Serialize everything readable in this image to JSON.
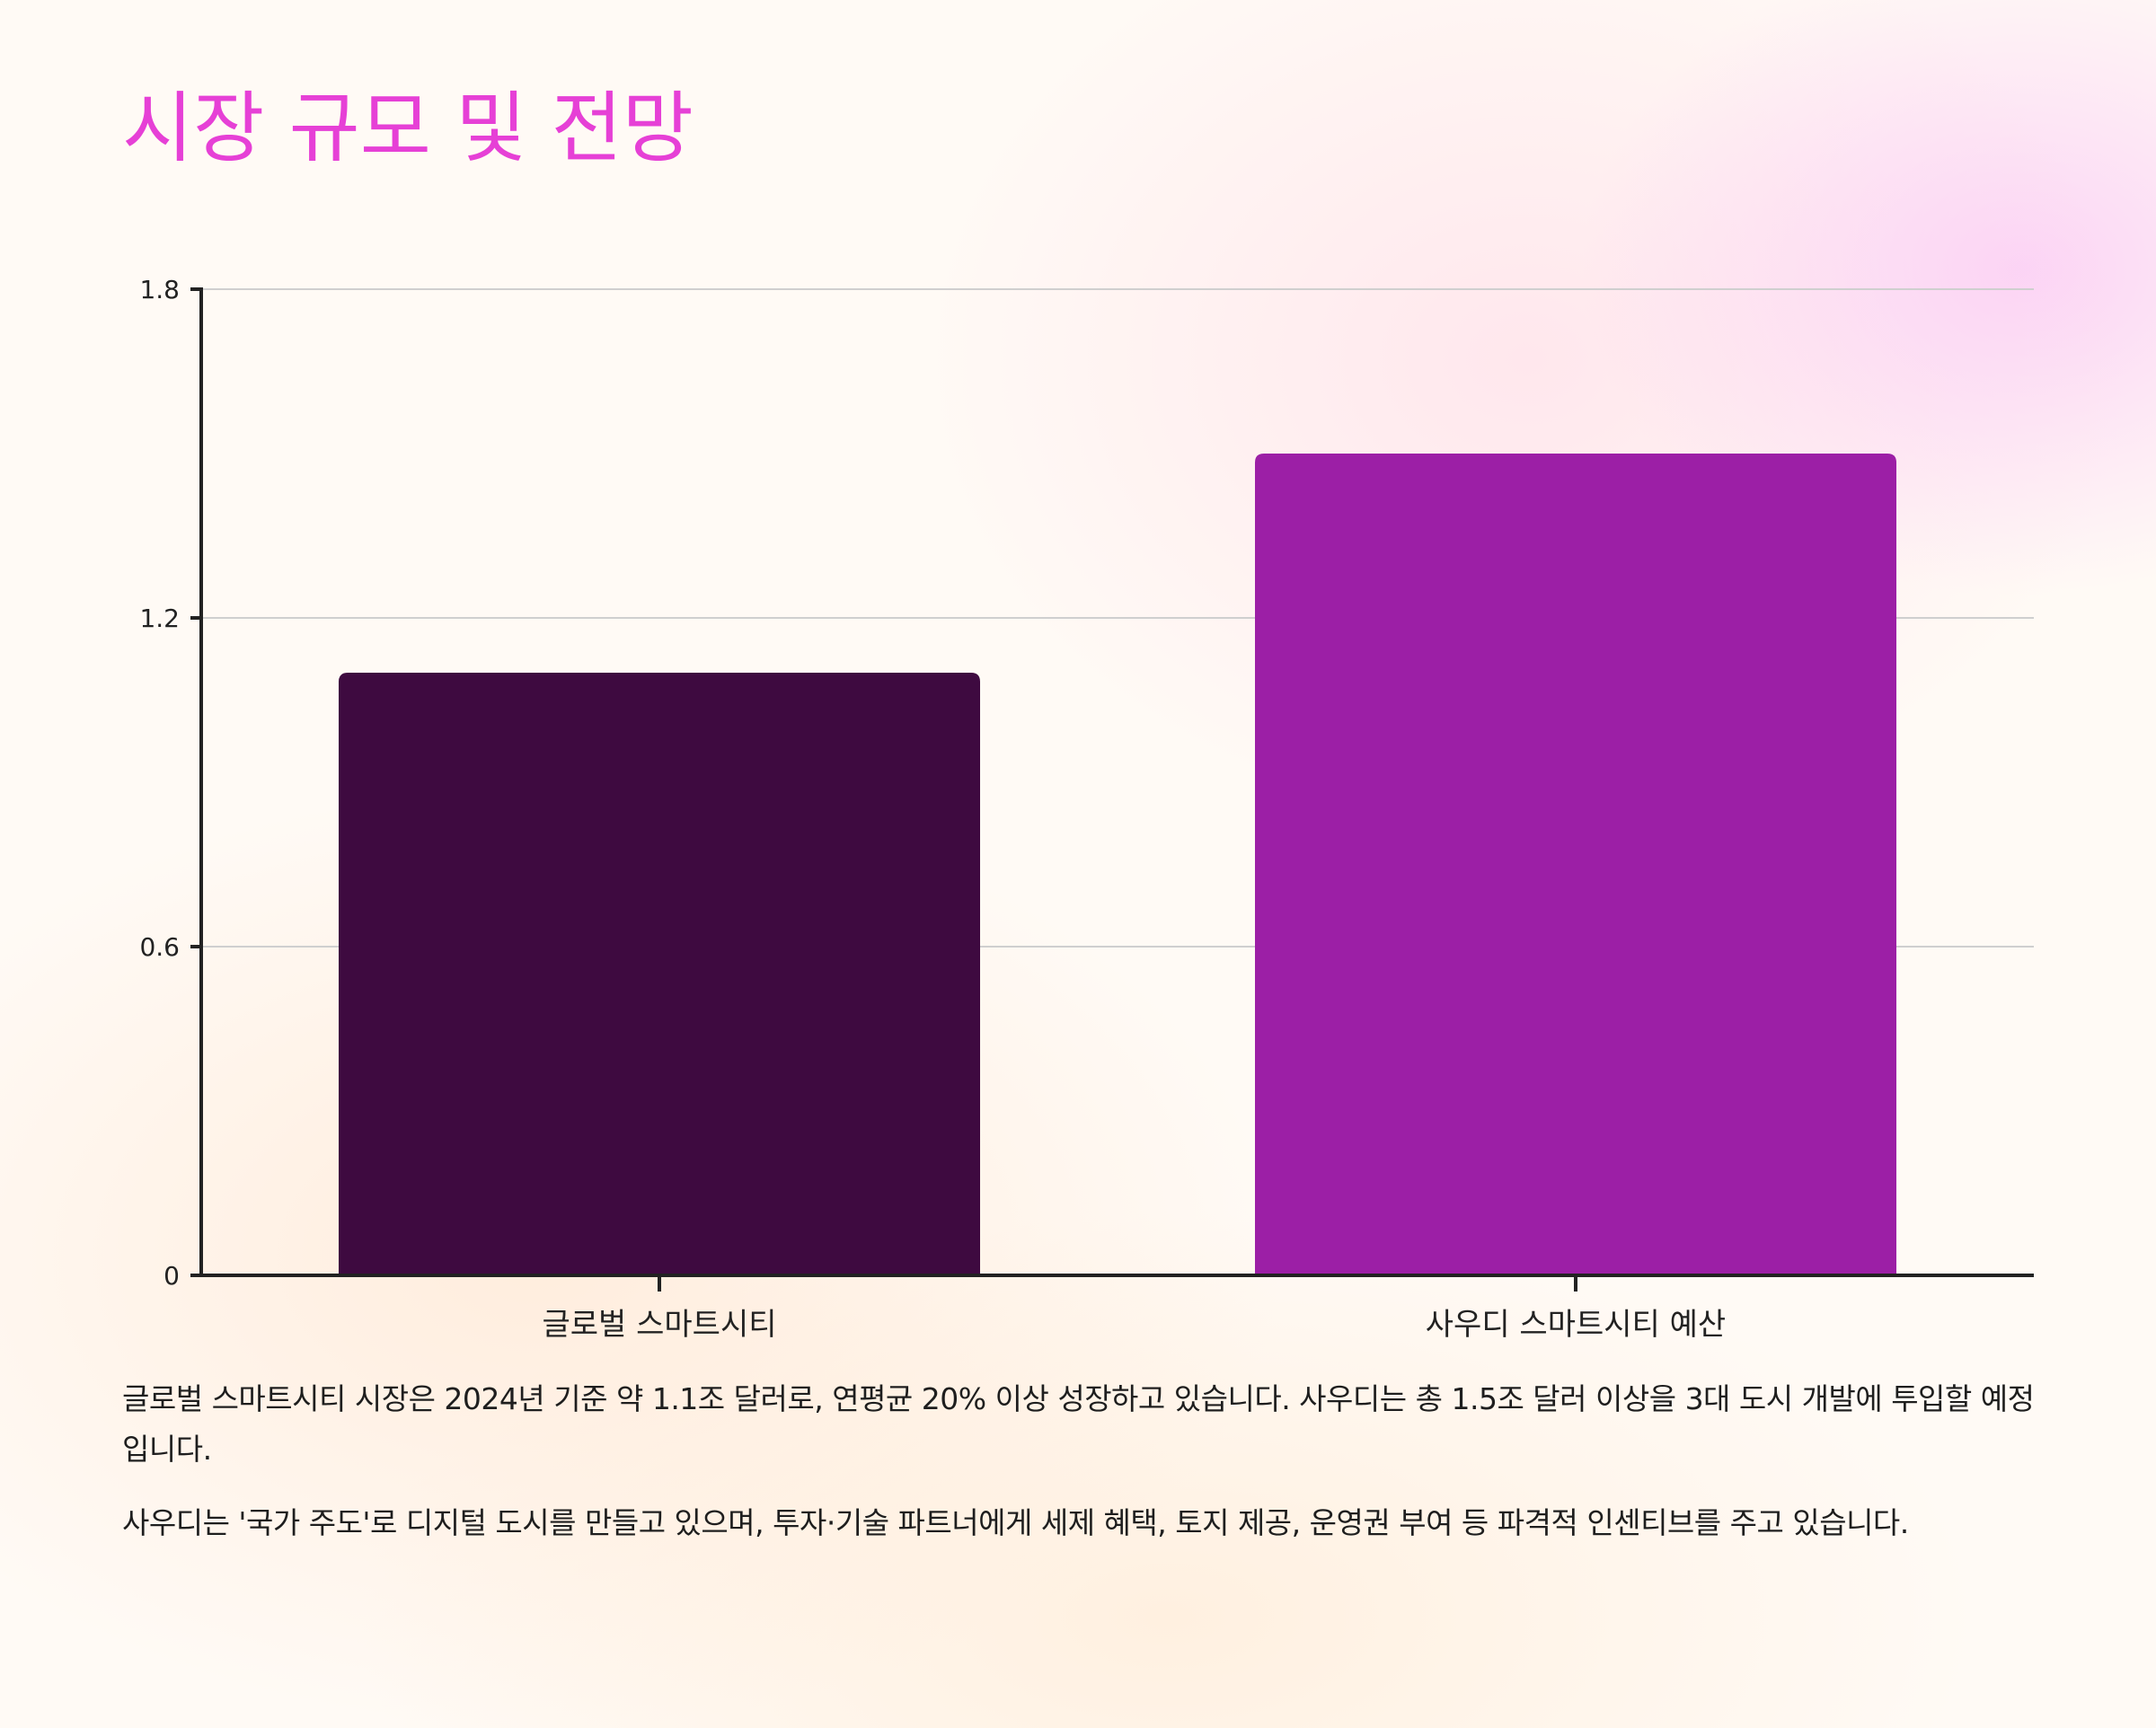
{
  "page": {
    "title": "시장 규모 및 전망"
  },
  "chart_data": {
    "type": "bar",
    "categories": [
      "글로벌 스마트시티",
      "사우디 스마트시티 예산"
    ],
    "values": [
      1.1,
      1.5
    ],
    "colors": [
      "#3e0a40",
      "#9c1fa6"
    ],
    "yticks": [
      0,
      0.6,
      1.2,
      1.8
    ],
    "ylim": [
      0,
      1.8
    ],
    "grid": true,
    "title": "",
    "xlabel": "",
    "ylabel": ""
  },
  "paragraphs": [
    "글로벌 스마트시티 시장은 2024년 기준 약 1.1조 달러로, 연평균 20% 이상 성장하고 있습니다. 사우디는 총 1.5조 달러 이상을 3대 도시 개발에 투입할 예정입니다.",
    "사우디는 '국가 주도'로 디지털 도시를 만들고 있으며, 투자·기술 파트너에게 세제 혜택, 토지 제공, 운영권 부여 등 파격적 인센티브를 주고 있습니다."
  ],
  "colors": {
    "title": "#e640d6",
    "axis": "#222222",
    "grid": "#cfcfcf"
  }
}
